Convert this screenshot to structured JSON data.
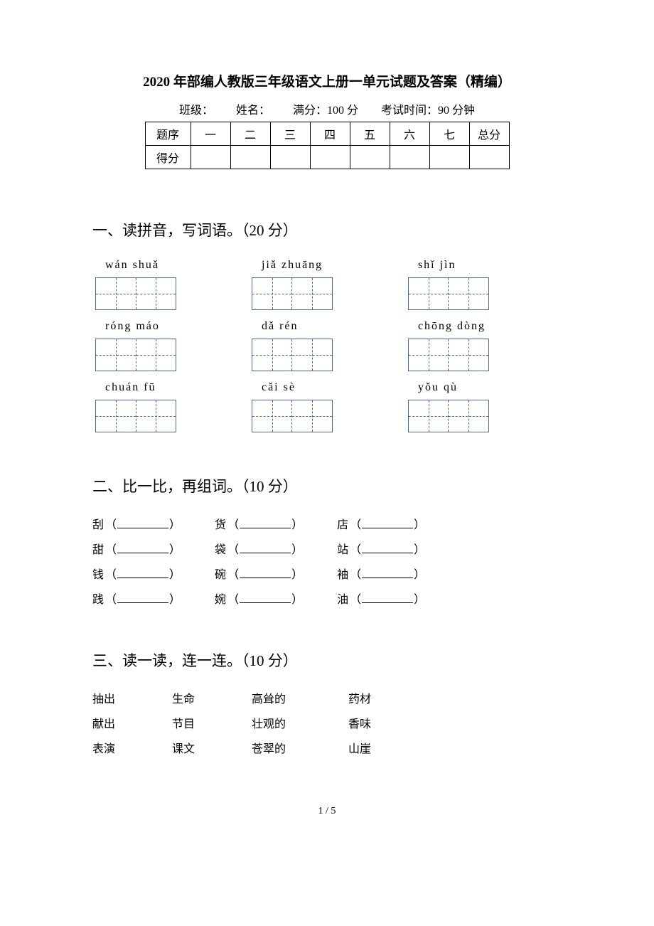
{
  "title": "2020 年部编人教版三年级语文上册一单元试题及答案（精编）",
  "info": {
    "class_label": "班级：",
    "name_label": "姓名：",
    "full_score_label": "满分：100 分",
    "time_label": "考试时间：90 分钟"
  },
  "score_table": {
    "header_label": "题序",
    "columns": [
      "一",
      "二",
      "三",
      "四",
      "五",
      "六",
      "七",
      "总分"
    ],
    "score_label": "得分"
  },
  "section1": {
    "heading": "一、读拼音，写词语。（20 分）",
    "items": [
      {
        "pinyin": "wán  shuǎ",
        "boxes": 2
      },
      {
        "pinyin": "jiǎ  zhuāng",
        "boxes": 2
      },
      {
        "pinyin": "shǐ  jìn",
        "boxes": 2
      },
      {
        "pinyin": "róng  máo",
        "boxes": 2
      },
      {
        "pinyin": "dǎ  rén",
        "boxes": 2
      },
      {
        "pinyin": "chōng dòng",
        "boxes": 2
      },
      {
        "pinyin": "chuán  fū",
        "boxes": 2
      },
      {
        "pinyin": "cǎi  sè",
        "boxes": 2
      },
      {
        "pinyin": "yǒu  qù",
        "boxes": 2
      }
    ]
  },
  "section2": {
    "heading": "二、比一比，再组词。（10 分）",
    "rows": [
      [
        "刮",
        "货",
        "店"
      ],
      [
        "甜",
        "袋",
        "站"
      ],
      [
        "钱",
        "碗",
        "袖"
      ],
      [
        "践",
        "婉",
        "油"
      ]
    ]
  },
  "section3": {
    "heading": "三、读一读，连一连。（10 分）",
    "rows": [
      [
        "抽出",
        "生命",
        "高耸的",
        "药材"
      ],
      [
        "献出",
        "节目",
        "壮观的",
        "香味"
      ],
      [
        "表演",
        "课文",
        "苍翠的",
        "山崖"
      ]
    ]
  },
  "footer": "1  /  5"
}
